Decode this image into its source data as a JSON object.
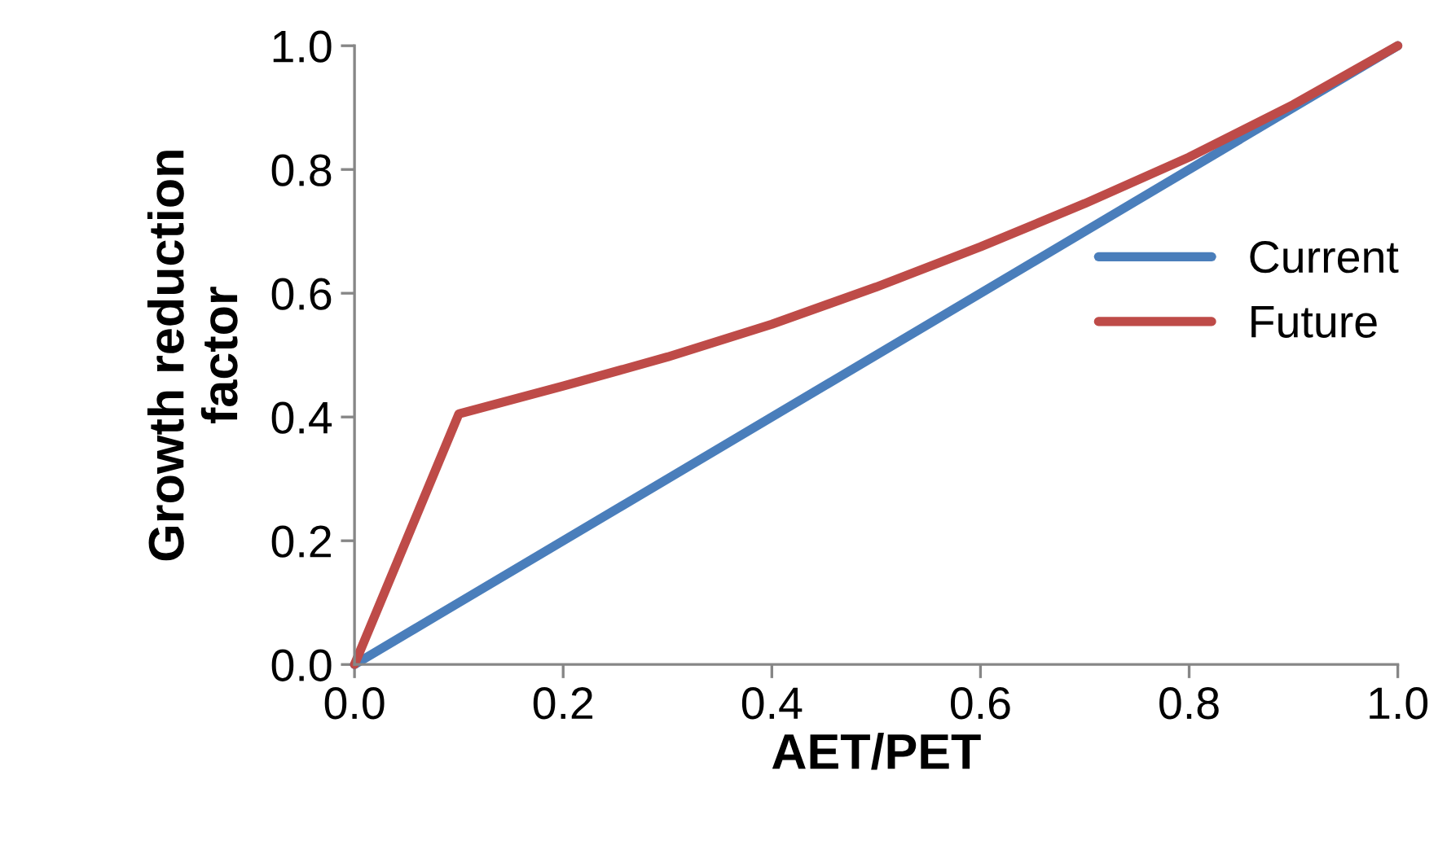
{
  "chart_data": {
    "type": "line",
    "xlabel": "AET/PET",
    "ylabel": "Growth reduction\nfactor",
    "xlim": [
      0.0,
      1.0
    ],
    "ylim": [
      0.0,
      1.0
    ],
    "xticks": [
      {
        "value": 0,
        "label": "0.0"
      },
      0.2,
      0.4,
      0.6,
      0.8,
      {
        "value": 1,
        "label": "1.0"
      }
    ],
    "yticks": [
      {
        "value": 0,
        "label": "0.0"
      },
      0.2,
      0.4,
      0.6,
      0.8,
      {
        "value": 1,
        "label": "1.0"
      }
    ],
    "grid": false,
    "legend": "right",
    "marker": "none",
    "line_style": "solid",
    "series": [
      {
        "name": "Current",
        "color": "#4a7ebb",
        "x": [
          0.0,
          1.0
        ],
        "values": [
          0.0,
          1.0
        ]
      },
      {
        "name": "Future",
        "color": "#be4b48",
        "x": [
          0.0,
          0.1,
          0.2,
          0.3,
          0.4,
          0.5,
          0.6,
          0.7,
          0.8,
          0.9,
          1.0
        ],
        "values": [
          0.0,
          0.405,
          0.45,
          0.497,
          0.55,
          0.61,
          0.675,
          0.745,
          0.82,
          0.905,
          1.0
        ]
      }
    ]
  }
}
